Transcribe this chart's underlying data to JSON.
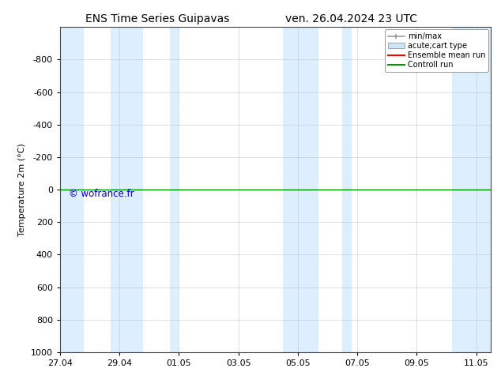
{
  "title_left": "ENS Time Series Guipavas",
  "title_right": "ven. 26.04.2024 23 UTC",
  "ylabel": "Temperature 2m (°C)",
  "ylim_bottom": 1000,
  "ylim_top": -1000,
  "yticks": [
    -800,
    -600,
    -400,
    -200,
    0,
    200,
    400,
    600,
    800,
    1000
  ],
  "xtick_labels": [
    "27.04",
    "29.04",
    "01.05",
    "03.05",
    "05.05",
    "07.05",
    "09.05",
    "11.05"
  ],
  "xtick_positions": [
    0,
    2,
    4,
    6,
    8,
    10,
    12,
    14
  ],
  "xlim": [
    0,
    14.5
  ],
  "shaded_band_positions": [
    [
      0.0,
      0.8
    ],
    [
      1.7,
      2.8
    ],
    [
      3.7,
      4.0
    ],
    [
      7.5,
      8.7
    ],
    [
      9.5,
      9.8
    ],
    [
      13.2,
      14.5
    ]
  ],
  "shaded_color": "#ddeeff",
  "green_line_y": 0,
  "watermark": "© wofrance.fr",
  "watermark_color": "#0000cc",
  "bg_color": "#ffffff",
  "plot_bg_color": "#ffffff",
  "legend_labels": [
    "min/max",
    "acute;cart type",
    "Ensemble mean run",
    "Controll run"
  ],
  "legend_minmax_color": "#999999",
  "legend_acute_color": "#cce6f5",
  "legend_ens_color": "#ff0000",
  "legend_ctrl_color": "#009900",
  "font_size": 8,
  "title_font_size": 10
}
